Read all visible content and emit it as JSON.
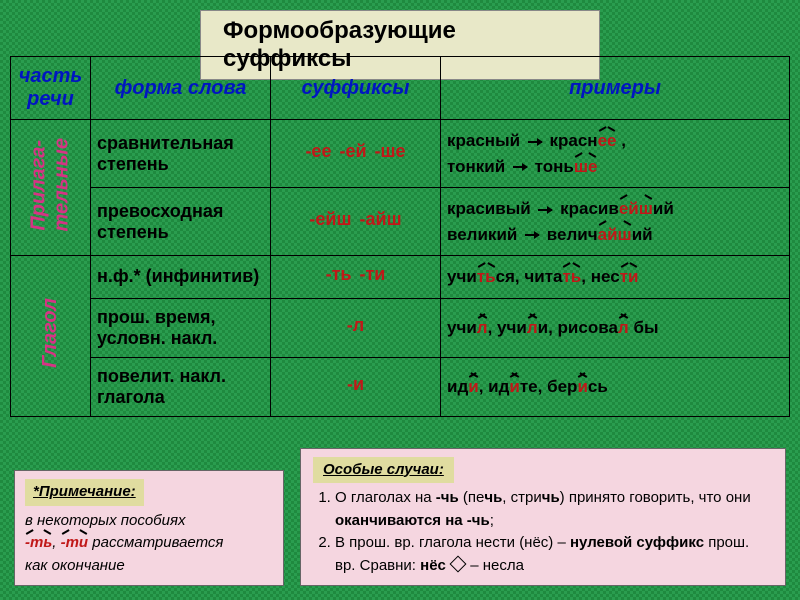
{
  "title": "Формообразующие суффиксы",
  "background_pattern_colors": [
    "#2a9d4f",
    "#1f8a3f"
  ],
  "headers": {
    "col1": "часть речи",
    "col2": "форма слова",
    "col3": "суффиксы",
    "col4": "примеры"
  },
  "header_color": "#0015c2",
  "pos_label_color": "#d63384",
  "suffix_color": "#c01818",
  "text_color": "#000000",
  "sections": [
    {
      "pos": "Прилага-\nтельные",
      "rows": [
        {
          "form": "сравнительная степень",
          "suffixes": [
            "-ее",
            "-ей",
            "-ше"
          ],
          "examples_html": "красный <arr></arr> красн<r>ее</r> ,<br>тонкий <arr></arr> тонь<r>ше</r>"
        },
        {
          "form": "превосходная степень",
          "suffixes": [
            "-ейш",
            "-айш"
          ],
          "examples_html": "красивый <arr></arr> красив<r>ейш</r>ий<br>великий <arr></arr> велич<r>айш</r>ий"
        }
      ]
    },
    {
      "pos": "Глагол",
      "rows": [
        {
          "form": "н.ф.* (инфинитив)",
          "suffixes": [
            "-ть",
            "-ти"
          ],
          "examples_html": "учи<r>ть</r>ся, чита<r>ть</r>, нес<r>ти</r>"
        },
        {
          "form": "прош. время, условн. накл.",
          "suffixes": [
            "-л"
          ],
          "examples_html": "учи<r>л</r>, учи<r>л</r>и, рисова<r>л</r> бы"
        },
        {
          "form": "повелит. накл. глагола",
          "suffixes": [
            "-и"
          ],
          "examples_html": "ид<r>и</r>, ид<r>и</r>те, бер<r>и</r>сь"
        }
      ]
    }
  ],
  "note": {
    "heading": "*Примечание:",
    "body_html": "в некоторых пособиях<br><r>-ть</r>, <r>-ти</r> рассматривается<br><it>как окончание</it>"
  },
  "special": {
    "heading": "Особые случаи:",
    "items": [
      "О глаголах на <b>-чь</b> (пе<b>чь</b>, стри<b>чь</b>) принято говорить, что они <b>оканчиваются на -чь</b>;",
      "В прош. вр. глагола нести (нёс) – <b>нулевой суффикс</b> прош. вр. Сравни: <b>нёс</b> <dia></dia> – несла"
    ]
  },
  "title_box_bg": "#e8e8c8",
  "note_box_bg": "#f5d6e0",
  "note_heading_bg": "#e0dca0"
}
